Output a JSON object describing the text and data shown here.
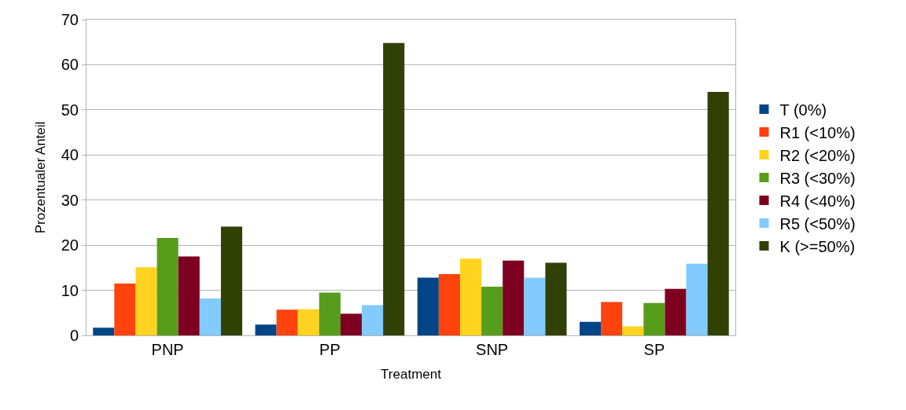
{
  "chart_data": {
    "type": "bar",
    "xlabel": "Treatment",
    "ylabel": "Prozentualer Anteil",
    "categories": [
      "PNP",
      "PP",
      "SNP",
      "SP"
    ],
    "series": [
      {
        "name": "T (0%)",
        "color": "#004586",
        "values": [
          1.7,
          2.4,
          12.8,
          3.0
        ]
      },
      {
        "name": "R1 (<10%)",
        "color": "#ff420e",
        "values": [
          11.5,
          5.7,
          13.6,
          7.4
        ]
      },
      {
        "name": "R2 (<20%)",
        "color": "#ffd320",
        "values": [
          15.1,
          5.8,
          17.0,
          2.0
        ]
      },
      {
        "name": "R3 (<30%)",
        "color": "#579d1c",
        "values": [
          21.6,
          9.5,
          10.8,
          7.2
        ]
      },
      {
        "name": "R4 (<40%)",
        "color": "#7e0021",
        "values": [
          17.5,
          4.8,
          16.6,
          10.3
        ]
      },
      {
        "name": "R5 (<50%)",
        "color": "#83caff",
        "values": [
          8.2,
          6.7,
          12.8,
          15.9
        ]
      },
      {
        "name": "K (>=50%)",
        "color": "#314004",
        "values": [
          24.1,
          64.8,
          16.1,
          54.0
        ]
      }
    ],
    "ylim": [
      0,
      70
    ],
    "yticks": [
      0,
      10,
      20,
      30,
      40,
      50,
      60,
      70
    ],
    "grid": "y",
    "legend": "right"
  }
}
